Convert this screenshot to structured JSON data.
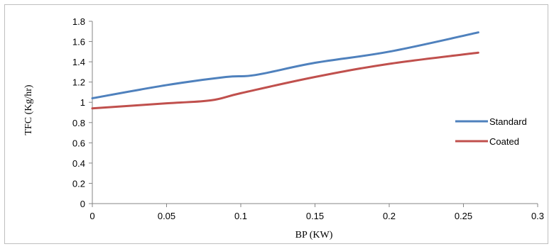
{
  "chart_data": {
    "type": "line",
    "xlabel": "BP (KW)",
    "ylabel": "TFC (Kg/hr)",
    "xlim": [
      0,
      0.3
    ],
    "ylim": [
      0,
      1.8
    ],
    "x_ticks": [
      "0",
      "0.05",
      "0.1",
      "0.15",
      "0.2",
      "0.25",
      "0.3"
    ],
    "y_ticks": [
      "0",
      "0.2",
      "0.4",
      "0.6",
      "0.8",
      "1",
      "1.2",
      "1.4",
      "1.6",
      "1.8"
    ],
    "grid": false,
    "legend_position": "right",
    "series": [
      {
        "name": "Standard",
        "color": "#4f81bd",
        "x": [
          0,
          0.05,
          0.09,
          0.11,
          0.15,
          0.2,
          0.26
        ],
        "y": [
          1.04,
          1.17,
          1.25,
          1.27,
          1.39,
          1.5,
          1.69
        ]
      },
      {
        "name": "Coated",
        "color": "#c0504d",
        "x": [
          0,
          0.05,
          0.08,
          0.1,
          0.15,
          0.2,
          0.26
        ],
        "y": [
          0.94,
          0.99,
          1.02,
          1.09,
          1.25,
          1.38,
          1.49
        ]
      }
    ]
  }
}
